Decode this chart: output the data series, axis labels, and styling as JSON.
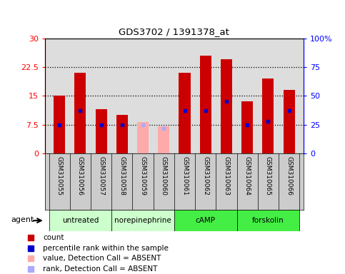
{
  "title": "GDS3702 / 1391378_at",
  "samples": [
    "GSM310055",
    "GSM310056",
    "GSM310057",
    "GSM310058",
    "GSM310059",
    "GSM310060",
    "GSM310061",
    "GSM310062",
    "GSM310063",
    "GSM310064",
    "GSM310065",
    "GSM310066"
  ],
  "count_values": [
    15.0,
    21.0,
    11.5,
    10.0,
    null,
    null,
    21.0,
    25.5,
    24.5,
    13.5,
    19.5,
    16.5
  ],
  "absent_values": [
    null,
    null,
    null,
    null,
    8.2,
    7.0,
    null,
    null,
    null,
    null,
    null,
    null
  ],
  "percentile_values": [
    25,
    37,
    25,
    25,
    null,
    null,
    37,
    37,
    45,
    25,
    28,
    37
  ],
  "absent_rank_values": [
    null,
    null,
    null,
    null,
    25,
    22,
    null,
    null,
    null,
    null,
    null,
    null
  ],
  "groups": [
    {
      "label": "untreated",
      "indices": [
        0,
        1,
        2
      ],
      "color": "#ccffcc"
    },
    {
      "label": "norepinephrine",
      "indices": [
        3,
        4,
        5
      ],
      "color": "#ccffcc"
    },
    {
      "label": "cAMP",
      "indices": [
        6,
        7,
        8
      ],
      "color": "#44ee44"
    },
    {
      "label": "forskolin",
      "indices": [
        9,
        10,
        11
      ],
      "color": "#44ee44"
    }
  ],
  "ylim_left": [
    0,
    30
  ],
  "ylim_right": [
    0,
    100
  ],
  "yticks_left": [
    0,
    7.5,
    15,
    22.5,
    30
  ],
  "yticks_right": [
    0,
    25,
    50,
    75,
    100
  ],
  "yticklabels_left": [
    "0",
    "7.5",
    "15",
    "22.5",
    "30"
  ],
  "yticklabels_right": [
    "0",
    "25",
    "50",
    "75",
    "100%"
  ],
  "bar_color": "#cc0000",
  "absent_bar_color": "#ffaaaa",
  "blue_dot_color": "#0000cc",
  "absent_rank_color": "#aaaaff",
  "bar_width": 0.55,
  "dotted_line_y": [
    7.5,
    15,
    22.5
  ],
  "legend_items": [
    {
      "color": "#cc0000",
      "marker": "s",
      "label": "count"
    },
    {
      "color": "#0000cc",
      "marker": "s",
      "label": "percentile rank within the sample"
    },
    {
      "color": "#ffaaaa",
      "marker": "s",
      "label": "value, Detection Call = ABSENT"
    },
    {
      "color": "#aaaaff",
      "marker": "s",
      "label": "rank, Detection Call = ABSENT"
    }
  ],
  "agent_label": "agent",
  "background_color": "#ffffff",
  "plot_bg_color": "#dddddd",
  "xlabel_bg_color": "#cccccc"
}
